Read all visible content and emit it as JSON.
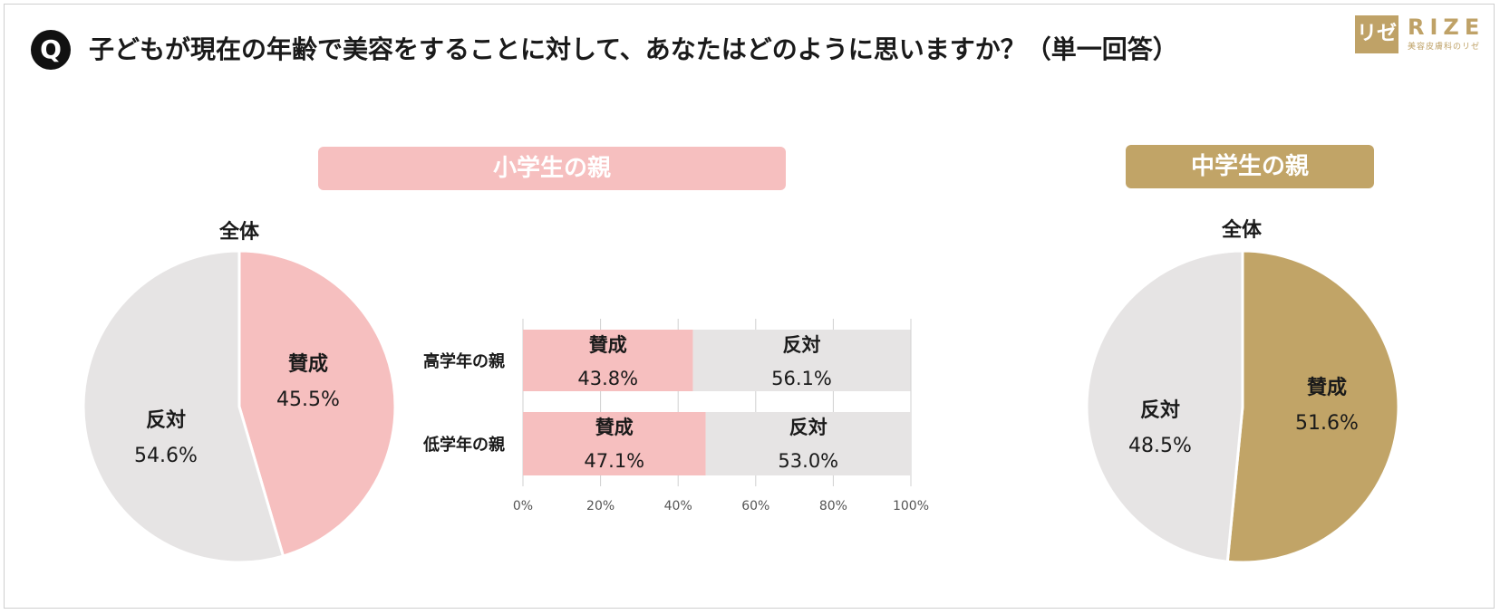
{
  "header": {
    "badge": "Q",
    "question": "子どもが現在の年齢で美容をすることに対して、あなたはどのように思いますか？（単一回答）"
  },
  "logo": {
    "mark": "リゼ",
    "word": "RIZE",
    "sub": "美容皮膚科のリゼ"
  },
  "sections": {
    "elementary": "小学生の親",
    "middle": "中学生の親"
  },
  "colors": {
    "pink": "#f6bfbf",
    "gold": "#c1a467",
    "gray": "#e6e4e4"
  },
  "chart_data": [
    {
      "type": "pie",
      "title": "全体",
      "slices": [
        {
          "label": "賛成",
          "value": 45.5,
          "display": "45.5%",
          "color": "#f6bfbf"
        },
        {
          "label": "反対",
          "value": 54.6,
          "display": "54.6%",
          "color": "#e6e4e4"
        }
      ]
    },
    {
      "type": "bar",
      "orientation": "horizontal",
      "stacked": true,
      "categories": [
        "高学年の親",
        "低学年の親"
      ],
      "series": [
        {
          "name": "賛成",
          "values": [
            43.8,
            47.1
          ],
          "display": [
            "43.8%",
            "47.1%"
          ],
          "color": "#f6bfbf"
        },
        {
          "name": "反対",
          "values": [
            56.1,
            53.0
          ],
          "display": [
            "56.1%",
            "53.0%"
          ],
          "color": "#e6e4e4"
        }
      ],
      "xlim": [
        0,
        100
      ],
      "ticks": [
        "0%",
        "20%",
        "40%",
        "60%",
        "80%",
        "100%"
      ],
      "grid": true
    },
    {
      "type": "pie",
      "title": "全体",
      "slices": [
        {
          "label": "賛成",
          "value": 51.6,
          "display": "51.6%",
          "color": "#c1a467"
        },
        {
          "label": "反対",
          "value": 48.5,
          "display": "48.5%",
          "color": "#e6e4e4"
        }
      ]
    }
  ]
}
